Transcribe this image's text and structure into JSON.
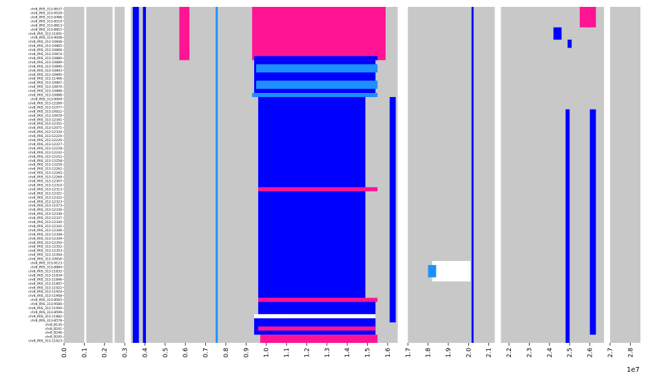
{
  "chart_data": {
    "type": "heatmap",
    "title": "",
    "xlabel": "",
    "ylabel": "",
    "x_multiplier": "1e7",
    "x_range": [
      0,
      28500000
    ],
    "x_ticks": [
      "0.0",
      "0.1",
      "0.2",
      "0.3",
      "0.4",
      "0.5",
      "0.6",
      "0.7",
      "0.8",
      "0.9",
      "1.0",
      "1.1",
      "1.2",
      "1.3",
      "1.4",
      "1.5",
      "1.6",
      "1.7",
      "1.8",
      "1.9",
      "2.0",
      "2.1",
      "2.2",
      "2.3",
      "2.4",
      "2.5",
      "2.6",
      "2.7",
      "2.8"
    ],
    "colors": {
      "gray": "#c8c8c8",
      "white": "#ffffff",
      "blue": "#0000ff",
      "lightblue": "#1e90ff",
      "pink": "#ff1493"
    },
    "rows": [
      "chr8_IRIS_313-8637",
      "chr8_IRIS_313-9529",
      "chr8_IRIS_313-9486",
      "chr8_IRIS_313-8519",
      "chr8_IRIS_313-8813",
      "chr8_IRIS_313-8857",
      "chr8_IRIS_313-11691",
      "chr8_IRIS_313-9048",
      "chr8_IRIS_313-10848",
      "chr8_IRIS_313-10865",
      "chr8_IRIS_313-10866",
      "chr8_IRIS_313-10874",
      "chr8_IRIS_313-10880",
      "chr8_IRIS_313-10889",
      "chr8_IRIS_313-10890",
      "chr8_IRIS_313-10893",
      "chr8_IRIS_313-10895",
      "chr8_IRIS_313-11466",
      "chr8_IRIS_313-10867",
      "chr8_IRIS_313-10870",
      "chr8_IRIS_313-10886",
      "chr8_IRIS_313-10888",
      "chr8_IRIS_313-8909",
      "chr8_IRIS_313-12289",
      "chr8_IRIS_313-11077",
      "chr8_IRIS_313-10922",
      "chr8_IRIS_313-10679",
      "chr8_IRIS_313-12341",
      "chr8_IRIS_313-12351",
      "chr8_IRIS_313-12071",
      "chr8_IRIS_313-12334",
      "chr8_IRIS_313-12220",
      "chr8_IRIS_313-12226",
      "chr8_IRIS_313-12227",
      "chr8_IRIS_313-12228",
      "chr8_IRIS_313-12242",
      "chr8_IRIS_313-12252",
      "chr8_IRIS_313-12258",
      "chr8_IRIS_313-12259",
      "chr8_IRIS_313-12262",
      "chr8_IRIS_313-12265",
      "chr8_IRIS_313-12269",
      "chr8_IRIS_313-12307",
      "chr8_IRIS_313-12310",
      "chr8_IRIS_313-12313",
      "chr8_IRIS_313-12321",
      "chr8_IRIS_313-12322",
      "chr8_IRIS_313-12323",
      "chr8_IRIS_313-11073",
      "chr8_IRIS_313-12330",
      "chr8_IRIS_313-12336",
      "chr8_IRIS_313-12337",
      "chr8_IRIS_313-12340",
      "chr8_IRIS_313-12342",
      "chr8_IRIS_313-12346",
      "chr8_IRIS_313-12348",
      "chr8_IRIS_313-12349",
      "chr8_IRIS_313-12350",
      "chr8_IRIS_313-12352",
      "chr8_IRIS_313-12353",
      "chr8_IRIS_313-11094",
      "chr8_IRIS_313-10656",
      "chr8_IRIS_313-9123",
      "chr8_IRIS_313-8884",
      "chr8_IRIS_313-11832",
      "chr8_IRIS_313-11834",
      "chr8_IRIS_313-11846",
      "chr8_IRIS_313-11897",
      "chr8_IRIS_313-11922",
      "chr8_IRIS_313-11924",
      "chr8_IRIS_313-11968",
      "chr8_IRIS_313-8565",
      "chr8_IRIS_313-9580",
      "chr8_IRIS_313-11900",
      "chr8_IRIS_313-8599",
      "chr8_IRIS_313-11882",
      "chr8_IRIS_313-8578",
      "chr8_B134",
      "chr8_B241",
      "chr8_B246",
      "chr8_B245",
      "chr8_IRIS_313-11623"
    ],
    "blocks": [
      {
        "rows": [
          0,
          81
        ],
        "x": [
          0,
          29000000
        ],
        "color": "gray"
      },
      {
        "rows": [
          0,
          81
        ],
        "x": [
          1000000,
          1100000
        ],
        "color": "white"
      },
      {
        "rows": [
          0,
          81
        ],
        "x": [
          2400000,
          2500000
        ],
        "color": "white"
      },
      {
        "rows": [
          0,
          81
        ],
        "x": [
          3000000,
          3300000
        ],
        "color": "white"
      },
      {
        "rows": [
          0,
          81
        ],
        "x": [
          9800000,
          11000000
        ],
        "color": "white"
      },
      {
        "rows": [
          0,
          81
        ],
        "x": [
          16500000,
          17000000
        ],
        "color": "white"
      },
      {
        "rows": [
          0,
          81
        ],
        "x": [
          21300000,
          21600000
        ],
        "color": "white"
      },
      {
        "rows": [
          0,
          81
        ],
        "x": [
          26700000,
          27000000
        ],
        "color": "white"
      },
      {
        "rows": [
          0,
          81
        ],
        "x": [
          3400000,
          3700000
        ],
        "color": "blue"
      },
      {
        "rows": [
          0,
          81
        ],
        "x": [
          3900000,
          4050000
        ],
        "color": "blue"
      },
      {
        "rows": [
          0,
          81
        ],
        "x": [
          20150000,
          20250000
        ],
        "color": "blue"
      },
      {
        "rows": [
          0,
          81
        ],
        "x": [
          7500000,
          7600000
        ],
        "color": "lightblue"
      },
      {
        "rows": [
          0,
          12
        ],
        "x": [
          9300000,
          15900000
        ],
        "color": "pink"
      },
      {
        "rows": [
          0,
          12
        ],
        "x": [
          5700000,
          6200000
        ],
        "color": "pink"
      },
      {
        "rows": [
          0,
          4
        ],
        "x": [
          25500000,
          26300000
        ],
        "color": "pink"
      },
      {
        "rows": [
          5,
          7
        ],
        "x": [
          24200000,
          24600000
        ],
        "color": "blue"
      },
      {
        "rows": [
          8,
          9
        ],
        "x": [
          24900000,
          25100000
        ],
        "color": "blue"
      },
      {
        "rows": [
          12,
          12
        ],
        "x": [
          9400000,
          15500000
        ],
        "color": "blue"
      },
      {
        "rows": [
          13,
          21
        ],
        "x": [
          9400000,
          15400000
        ],
        "color": "blue"
      },
      {
        "rows": [
          14,
          15
        ],
        "x": [
          9500000,
          15500000
        ],
        "color": "lightblue"
      },
      {
        "rows": [
          18,
          19
        ],
        "x": [
          9500000,
          15500000
        ],
        "color": "lightblue"
      },
      {
        "rows": [
          21,
          21
        ],
        "x": [
          9300000,
          15500000
        ],
        "color": "lightblue"
      },
      {
        "rows": [
          22,
          70
        ],
        "x": [
          9600000,
          14900000
        ],
        "color": "blue"
      },
      {
        "rows": [
          44,
          44
        ],
        "x": [
          9600000,
          15500000
        ],
        "color": "pink"
      },
      {
        "rows": [
          22,
          76
        ],
        "x": [
          16100000,
          16400000
        ],
        "color": "blue"
      },
      {
        "rows": [
          25,
          79
        ],
        "x": [
          26000000,
          26300000
        ],
        "color": "blue"
      },
      {
        "rows": [
          25,
          81
        ],
        "x": [
          24800000,
          25000000
        ],
        "color": "blue"
      },
      {
        "rows": [
          62,
          66
        ],
        "x": [
          18200000,
          20100000
        ],
        "color": "white"
      },
      {
        "rows": [
          63,
          65
        ],
        "x": [
          18000000,
          18400000
        ],
        "color": "lightblue"
      },
      {
        "rows": [
          71,
          71
        ],
        "x": [
          9600000,
          15500000
        ],
        "color": "pink"
      },
      {
        "rows": [
          72,
          74
        ],
        "x": [
          9600000,
          15400000
        ],
        "color": "blue"
      },
      {
        "rows": [
          75,
          75
        ],
        "x": [
          9400000,
          15400000
        ],
        "color": "white"
      },
      {
        "rows": [
          76,
          79
        ],
        "x": [
          9400000,
          15400000
        ],
        "color": "blue"
      },
      {
        "rows": [
          78,
          78
        ],
        "x": [
          9600000,
          15400000
        ],
        "color": "pink"
      },
      {
        "rows": [
          80,
          81
        ],
        "x": [
          9700000,
          15500000
        ],
        "color": "pink"
      }
    ]
  }
}
